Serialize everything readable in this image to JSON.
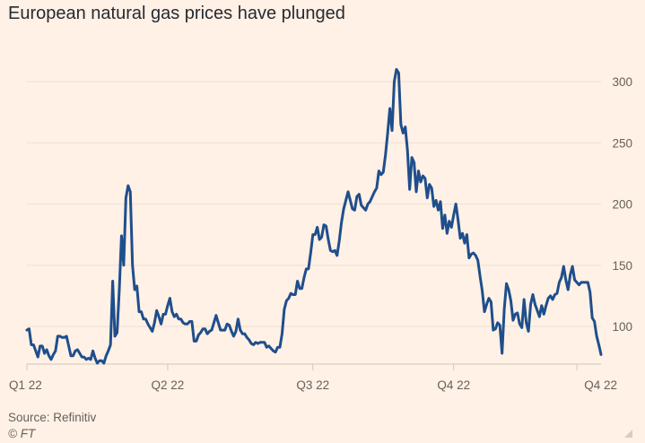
{
  "chart_data": {
    "type": "line",
    "title": "European natural gas prices have plunged",
    "x_ticks": [
      "Q1 22",
      "Q2 22",
      "Q3 22",
      "Q4 22",
      "Q4 22"
    ],
    "x_tick_index": [
      0,
      64,
      130,
      194,
      250
    ],
    "y_ticks": [
      100,
      150,
      200,
      250,
      300
    ],
    "ylim": [
      70,
      315
    ],
    "grid": true,
    "series": [
      {
        "name": "European natural gas price",
        "color": "#1F4E8C",
        "values": [
          97,
          98,
          85,
          85,
          80,
          75,
          84,
          84,
          78,
          81,
          76,
          73,
          77,
          80,
          92,
          92,
          91,
          91,
          92,
          84,
          76,
          76,
          80,
          81,
          78,
          75,
          75,
          73,
          74,
          73,
          80,
          74,
          70,
          72,
          72,
          70,
          76,
          80,
          85,
          137,
          92,
          95,
          130,
          174,
          150,
          205,
          215,
          210,
          150,
          130,
          133,
          112,
          112,
          106,
          106,
          102,
          99,
          96,
          103,
          113,
          108,
          102,
          110,
          110,
          117,
          123,
          112,
          108,
          110,
          106,
          106,
          103,
          102,
          102,
          104,
          104,
          88,
          88,
          93,
          95,
          98,
          98,
          94,
          96,
          97,
          103,
          109,
          103,
          97,
          97,
          97,
          102,
          101,
          96,
          92,
          96,
          106,
          97,
          94,
          94,
          91,
          89,
          86,
          85,
          87,
          86,
          87,
          87,
          87,
          83,
          84,
          82,
          80,
          79,
          83,
          83,
          94,
          114,
          121,
          123,
          127,
          126,
          126,
          137,
          131,
          131,
          140,
          147,
          147,
          160,
          175,
          175,
          181,
          171,
          173,
          183,
          182,
          171,
          162,
          161,
          162,
          158,
          170,
          185,
          196,
          203,
          210,
          203,
          196,
          195,
          206,
          208,
          199,
          197,
          195,
          200,
          202,
          206,
          210,
          213,
          227,
          224,
          226,
          240,
          258,
          278,
          260,
          300,
          310,
          307,
          265,
          258,
          263,
          244,
          212,
          238,
          234,
          210,
          227,
          218,
          223,
          221,
          205,
          216,
          213,
          198,
          203,
          195,
          202,
          180,
          191,
          176,
          186,
          181,
          191,
          200,
          187,
          172,
          176,
          168,
          175,
          156,
          159,
          160,
          158,
          154,
          141,
          129,
          112,
          118,
          123,
          120,
          97,
          98,
          103,
          101,
          78,
          114,
          135,
          130,
          121,
          105,
          110,
          111,
          102,
          99,
          122,
          103,
          96,
          118,
          126,
          118,
          113,
          108,
          117,
          110,
          117,
          123,
          125,
          122,
          126,
          127,
          136,
          140,
          149,
          138,
          130,
          142,
          149,
          138,
          136,
          134,
          136,
          136,
          136,
          136,
          128,
          107,
          104,
          92,
          85,
          77
        ]
      }
    ]
  },
  "footer": {
    "source": "Source: Refinitiv",
    "credit": "© FT"
  }
}
